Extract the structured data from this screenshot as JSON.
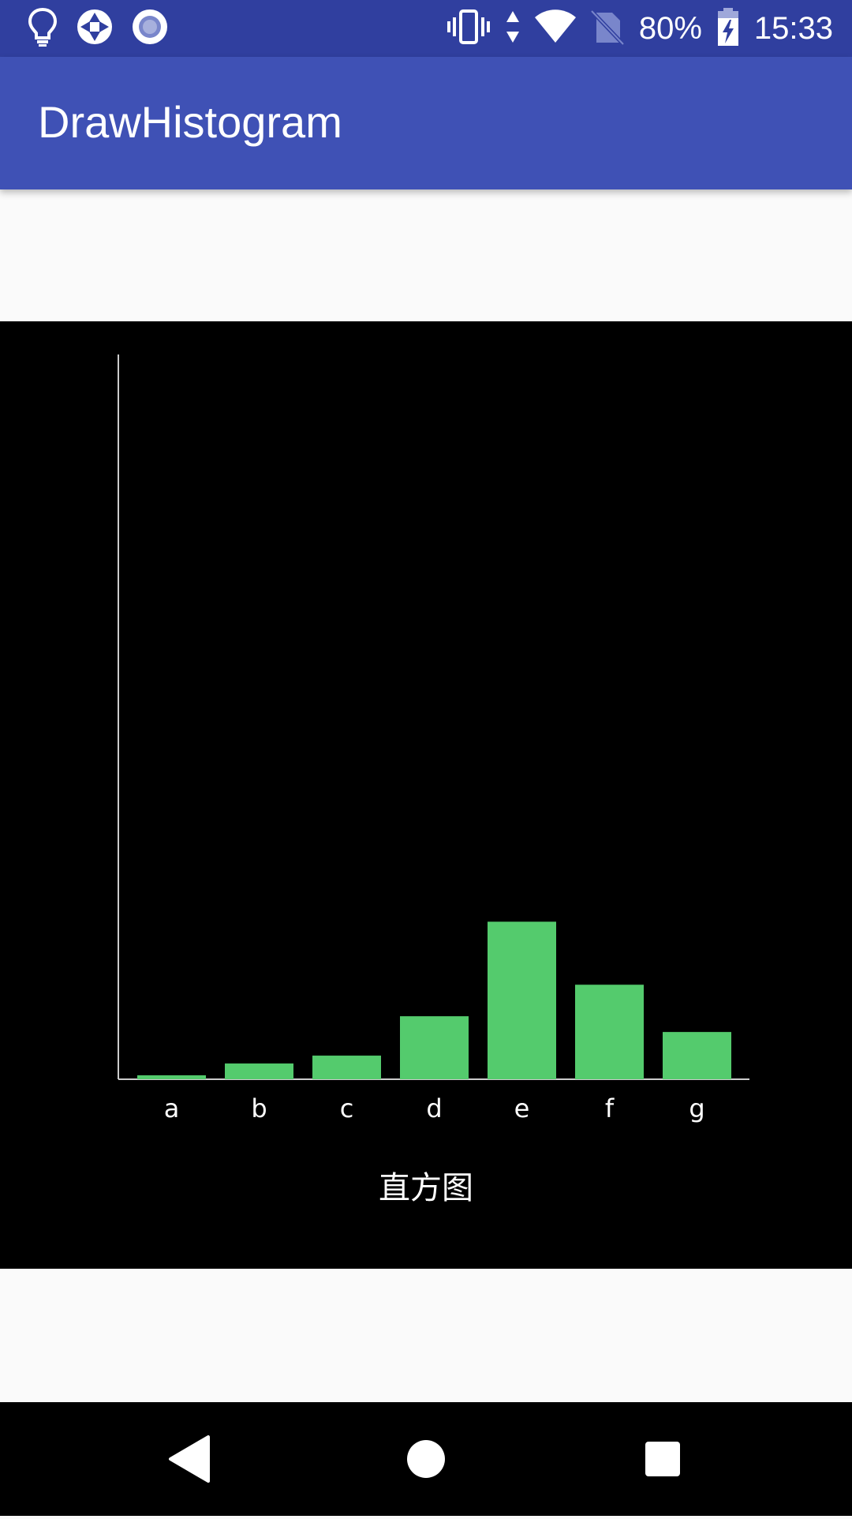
{
  "status_bar": {
    "battery": "80%",
    "time": "15:33",
    "icons": [
      "lightbulb-icon",
      "aperture-icon",
      "record-icon",
      "vibrate-icon",
      "data-arrows-icon",
      "wifi-icon",
      "no-sim-icon",
      "battery-charging-icon"
    ]
  },
  "app_bar": {
    "title": "DrawHistogram"
  },
  "chart_data": {
    "type": "bar",
    "categories": [
      "a",
      "b",
      "c",
      "d",
      "e",
      "f",
      "g"
    ],
    "values": [
      0.5,
      2,
      3,
      8,
      20,
      12,
      6
    ],
    "title": "直方图",
    "xlabel": "",
    "ylabel": "",
    "ylim": [
      0,
      92
    ],
    "bar_color": "#54cb6d",
    "axis_color": "#cccccc",
    "label_color": "#ffffff",
    "grid": false
  },
  "nav_bar": {
    "icons": [
      "back-icon",
      "home-icon",
      "recents-icon"
    ]
  }
}
